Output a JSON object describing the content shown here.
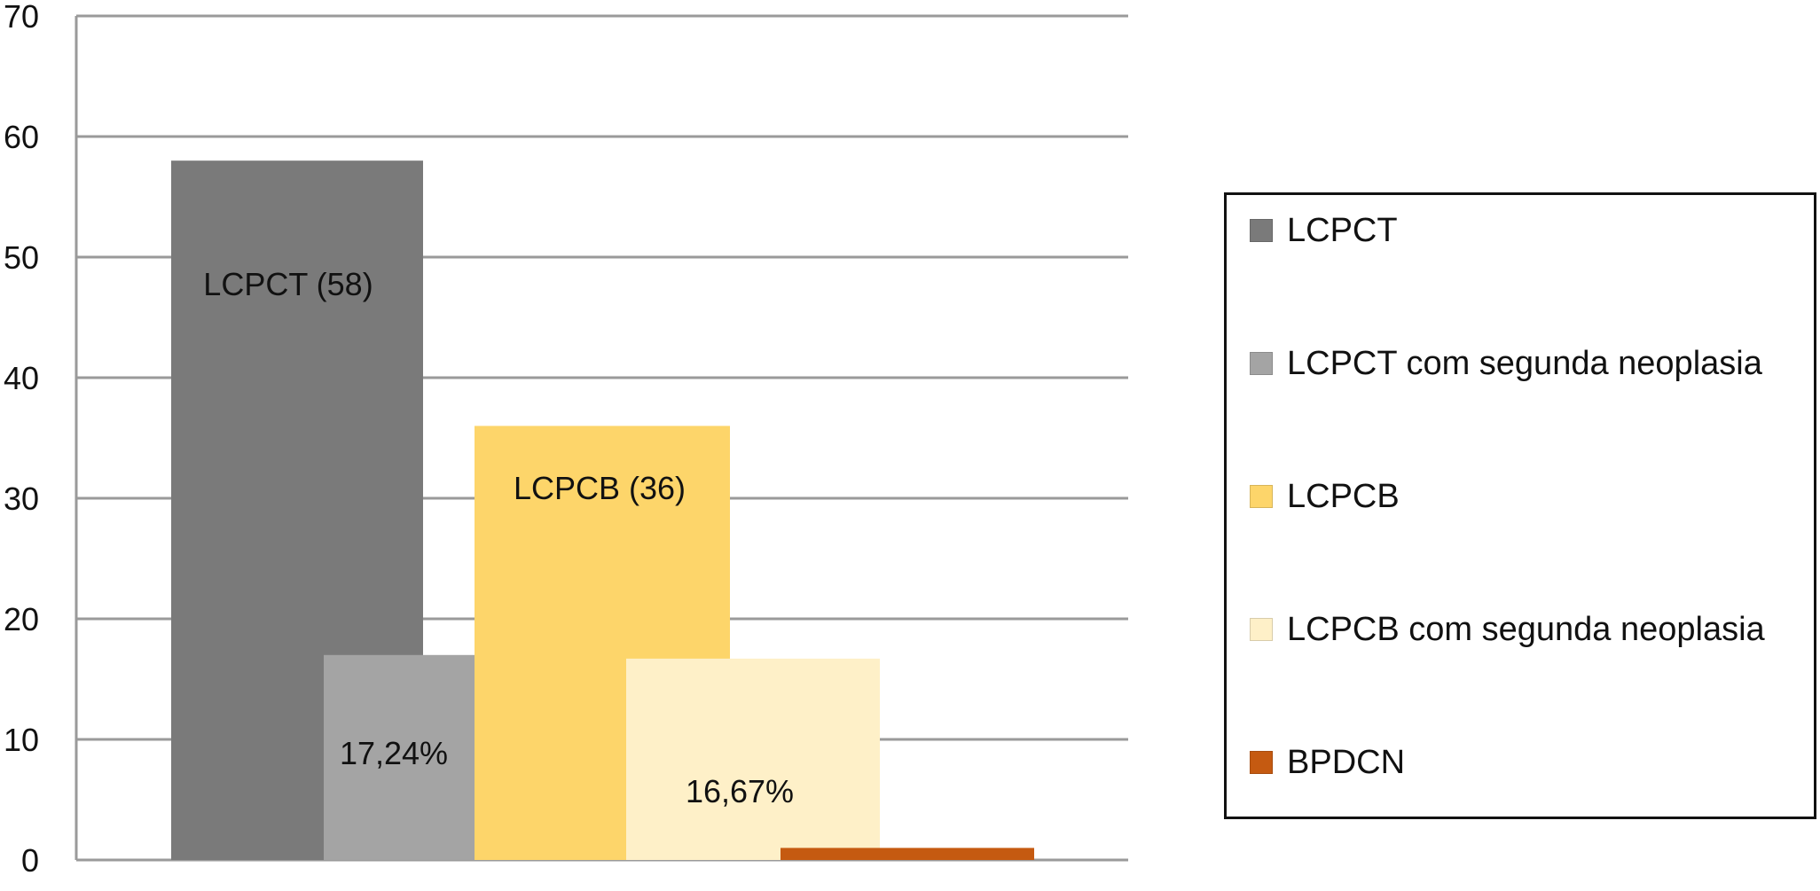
{
  "chart_data": {
    "type": "bar",
    "ylim": [
      0,
      70
    ],
    "yticks": [
      0,
      10,
      20,
      30,
      40,
      50,
      60,
      70
    ],
    "grid": true,
    "legend_position": "right",
    "series": [
      {
        "name": "LCPCT",
        "value": 58,
        "color": "#7a7a7a",
        "label": "LCPCT (58)"
      },
      {
        "name": "LCPCT com segunda neoplasia",
        "value": 17,
        "color": "#a4a4a4",
        "label": "17,24%"
      },
      {
        "name": "LCPCB",
        "value": 36,
        "color": "#fdd56a",
        "label": "LCPCB (36)"
      },
      {
        "name": "LCPCB com segunda neoplasia",
        "value": 16.7,
        "color": "#fef0c8",
        "label": "16,67%"
      },
      {
        "name": "BPDCN",
        "value": 1,
        "color": "#c55a11",
        "label": ""
      }
    ]
  }
}
